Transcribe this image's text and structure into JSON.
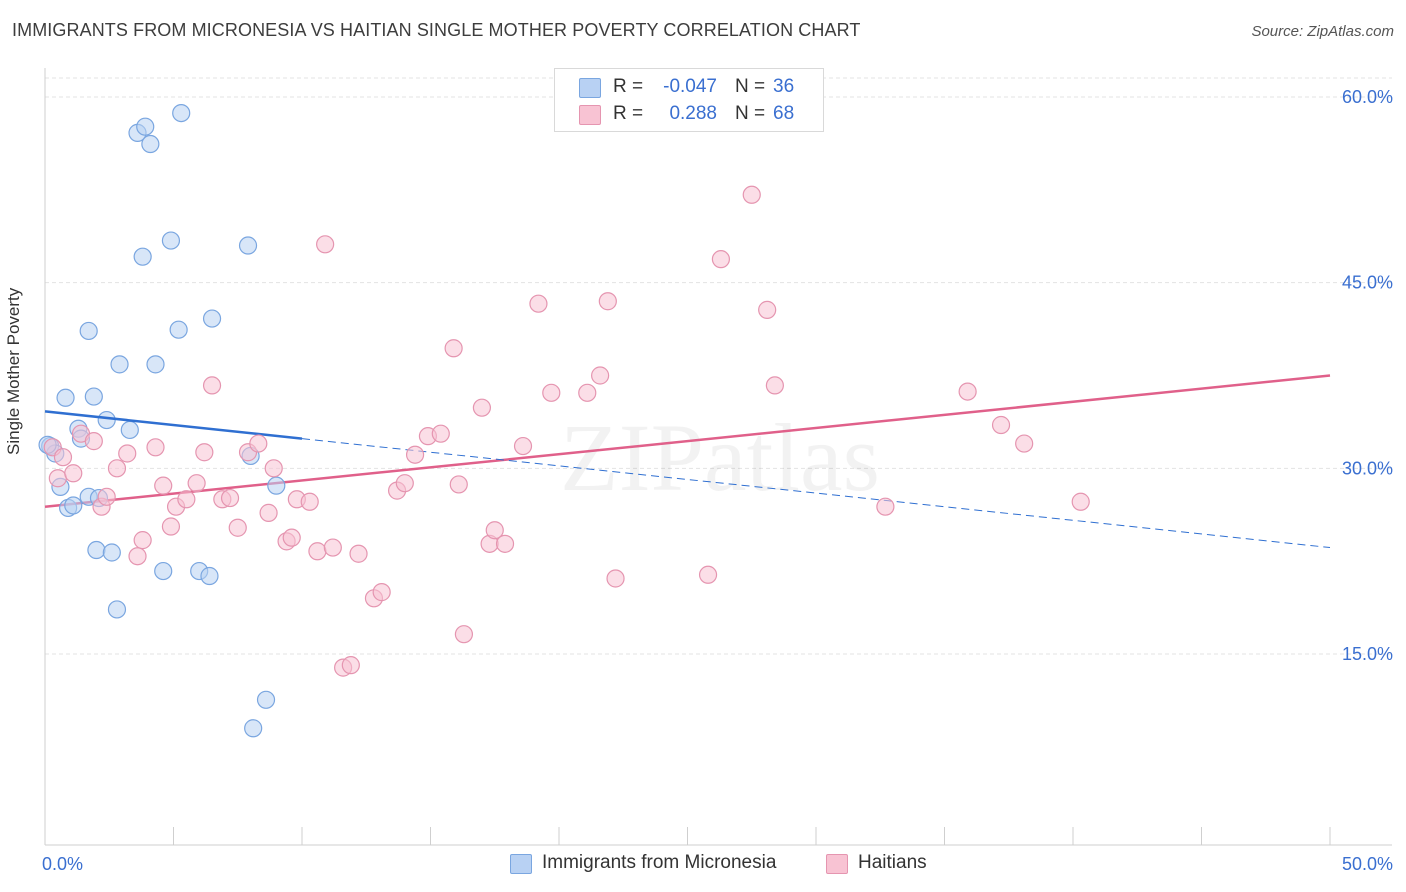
{
  "header": {
    "title": "IMMIGRANTS FROM MICRONESIA VS HAITIAN SINGLE MOTHER POVERTY CORRELATION CHART",
    "source": "Source: ZipAtlas.com"
  },
  "watermark": "ZIPatlas",
  "stats_box": {
    "rows": [
      {
        "r_label": "R =",
        "r_value": "-0.047",
        "n_label": "N =",
        "n_value": "36"
      },
      {
        "r_label": "R =",
        "r_value": "0.288",
        "n_label": "N =",
        "n_value": "68"
      }
    ]
  },
  "legend": {
    "items": [
      {
        "label": "Immigrants from Micronesia"
      },
      {
        "label": "Haitians"
      }
    ]
  },
  "colors": {
    "micronesia_fill": "#b8d1f3",
    "micronesia_stroke": "#7aa6e0",
    "micronesia_line": "#2f6fd1",
    "haitians_fill": "#f8c3d3",
    "haitians_stroke": "#e595b0",
    "haitians_line": "#e0608a",
    "tick_text": "#3a6fd0",
    "grid": "#e3e3e3"
  },
  "chart_data": {
    "type": "scatter",
    "title": "IMMIGRANTS FROM MICRONESIA VS HAITIAN SINGLE MOTHER POVERTY CORRELATION CHART",
    "xlabel": "",
    "ylabel": "Single Mother Poverty",
    "xlim": [
      0,
      50
    ],
    "ylim": [
      0,
      60
    ],
    "x_tick_labels": [
      "0.0%",
      "50.0%"
    ],
    "y_ticks": [
      15,
      30,
      45,
      60
    ],
    "y_tick_labels": [
      "15.0%",
      "30.0%",
      "45.0%",
      "60.0%"
    ],
    "grid": true,
    "legend_position": "bottom-center",
    "series": [
      {
        "name": "Immigrants from Micronesia",
        "points": [
          [
            0.2,
            31.8
          ],
          [
            0.4,
            31.2
          ],
          [
            0.6,
            28.5
          ],
          [
            0.8,
            35.7
          ],
          [
            0.9,
            26.8
          ],
          [
            1.1,
            27.0
          ],
          [
            1.3,
            33.2
          ],
          [
            1.4,
            32.4
          ],
          [
            1.7,
            41.1
          ],
          [
            1.7,
            27.7
          ],
          [
            1.9,
            35.8
          ],
          [
            2.0,
            23.4
          ],
          [
            2.1,
            27.6
          ],
          [
            2.4,
            33.9
          ],
          [
            2.6,
            23.2
          ],
          [
            2.8,
            18.6
          ],
          [
            2.9,
            38.4
          ],
          [
            3.3,
            33.1
          ],
          [
            3.6,
            57.1
          ],
          [
            3.8,
            47.1
          ],
          [
            3.9,
            57.6
          ],
          [
            4.1,
            56.2
          ],
          [
            4.3,
            38.4
          ],
          [
            4.6,
            21.7
          ],
          [
            4.9,
            48.4
          ],
          [
            5.2,
            41.2
          ],
          [
            5.3,
            58.7
          ],
          [
            6.0,
            21.7
          ],
          [
            6.4,
            21.3
          ],
          [
            6.5,
            42.1
          ],
          [
            7.9,
            48.0
          ],
          [
            8.0,
            31.0
          ],
          [
            8.1,
            9.0
          ],
          [
            8.6,
            11.3
          ],
          [
            9.0,
            28.6
          ],
          [
            0.1,
            31.9
          ]
        ],
        "trend_solid": [
          [
            0,
            34.6
          ],
          [
            10,
            32.4
          ]
        ],
        "trend_dashed": [
          [
            10,
            32.4
          ],
          [
            50,
            23.6
          ]
        ]
      },
      {
        "name": "Haitians",
        "points": [
          [
            0.3,
            31.7
          ],
          [
            0.5,
            29.2
          ],
          [
            0.7,
            30.9
          ],
          [
            1.1,
            29.6
          ],
          [
            1.4,
            32.8
          ],
          [
            1.9,
            32.2
          ],
          [
            2.2,
            26.9
          ],
          [
            2.4,
            27.7
          ],
          [
            2.8,
            30.0
          ],
          [
            3.2,
            31.2
          ],
          [
            3.6,
            22.9
          ],
          [
            3.8,
            24.2
          ],
          [
            4.3,
            31.7
          ],
          [
            4.6,
            28.6
          ],
          [
            4.9,
            25.3
          ],
          [
            5.1,
            26.9
          ],
          [
            5.5,
            27.5
          ],
          [
            5.9,
            28.8
          ],
          [
            6.2,
            31.3
          ],
          [
            6.5,
            36.7
          ],
          [
            6.9,
            27.5
          ],
          [
            7.2,
            27.6
          ],
          [
            7.5,
            25.2
          ],
          [
            7.9,
            31.3
          ],
          [
            8.3,
            32.0
          ],
          [
            8.7,
            26.4
          ],
          [
            8.9,
            30.0
          ],
          [
            9.4,
            24.1
          ],
          [
            9.6,
            24.4
          ],
          [
            9.8,
            27.5
          ],
          [
            10.3,
            27.3
          ],
          [
            10.6,
            23.3
          ],
          [
            10.9,
            48.1
          ],
          [
            11.2,
            23.6
          ],
          [
            11.6,
            13.9
          ],
          [
            11.9,
            14.1
          ],
          [
            12.2,
            23.1
          ],
          [
            12.8,
            19.5
          ],
          [
            13.1,
            20.0
          ],
          [
            13.7,
            28.2
          ],
          [
            14.0,
            28.8
          ],
          [
            14.4,
            31.1
          ],
          [
            14.9,
            32.6
          ],
          [
            15.4,
            32.8
          ],
          [
            15.9,
            39.7
          ],
          [
            16.1,
            28.7
          ],
          [
            16.3,
            16.6
          ],
          [
            17.0,
            34.9
          ],
          [
            17.3,
            23.9
          ],
          [
            17.5,
            25.0
          ],
          [
            17.9,
            23.9
          ],
          [
            18.6,
            31.8
          ],
          [
            19.2,
            43.3
          ],
          [
            19.7,
            36.1
          ],
          [
            21.1,
            36.1
          ],
          [
            21.6,
            37.5
          ],
          [
            21.9,
            43.5
          ],
          [
            22.2,
            21.1
          ],
          [
            25.8,
            21.4
          ],
          [
            26.3,
            46.9
          ],
          [
            27.5,
            52.1
          ],
          [
            28.1,
            42.8
          ],
          [
            28.4,
            36.7
          ],
          [
            32.7,
            26.9
          ],
          [
            35.9,
            36.2
          ],
          [
            37.2,
            33.5
          ],
          [
            38.1,
            32.0
          ],
          [
            40.3,
            27.3
          ]
        ],
        "trend_solid": [
          [
            0,
            26.9
          ],
          [
            50,
            37.5
          ]
        ]
      }
    ]
  }
}
